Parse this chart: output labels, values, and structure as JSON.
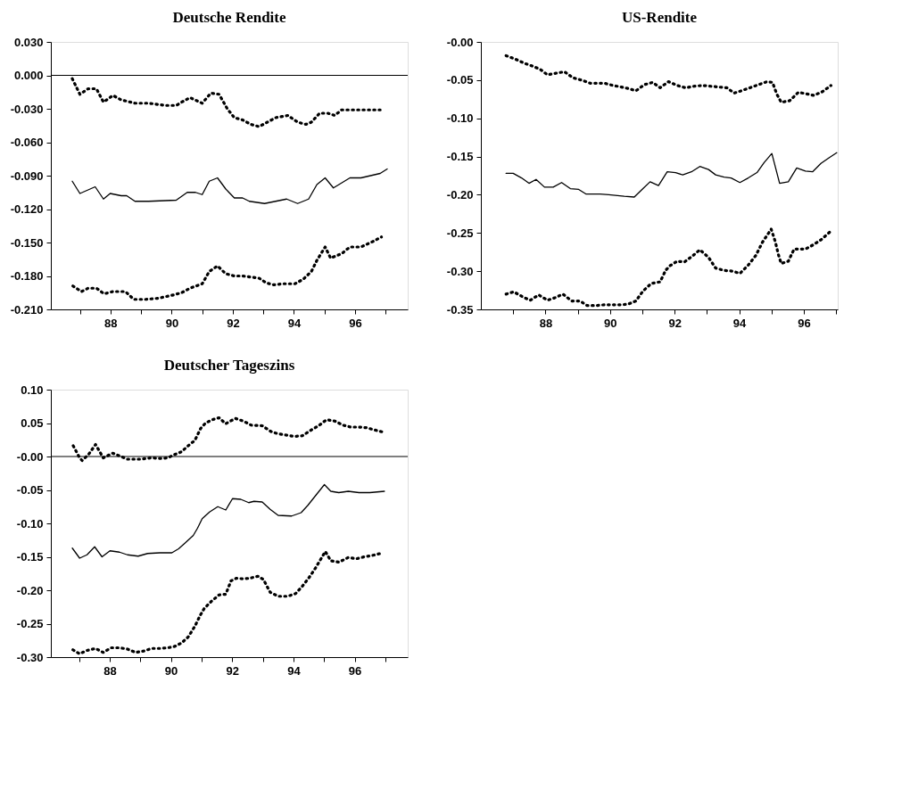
{
  "chart_data": [
    {
      "type": "line",
      "title": "Deutsche Rendite",
      "xlim": [
        86.05,
        97.72
      ],
      "ylim": [
        -0.21,
        0.03
      ],
      "xticks": [
        {
          "value": 87,
          "label": null
        },
        88,
        {
          "value": 89,
          "label": null
        },
        90,
        {
          "value": 91,
          "label": null
        },
        92,
        {
          "value": 93,
          "label": null
        },
        94,
        {
          "value": 95,
          "label": null
        },
        96,
        {
          "value": 97,
          "label": null
        }
      ],
      "yticks": [
        {
          "value": 0.03,
          "label": "0.030"
        },
        {
          "value": 0,
          "label": "0.000"
        },
        {
          "value": -0.03,
          "label": "-0.030"
        },
        {
          "value": -0.06,
          "label": "-0.060"
        },
        {
          "value": -0.09,
          "label": "-0.090"
        },
        {
          "value": -0.12,
          "label": "-0.120"
        },
        {
          "value": -0.15,
          "label": "-0.150"
        },
        {
          "value": -0.18,
          "label": "-0.180"
        },
        {
          "value": -0.21,
          "label": "-0.210"
        }
      ],
      "ref_lines": [
        {
          "axis": "y",
          "value": 0,
          "color": "#000000"
        }
      ],
      "series": [
        {
          "color": "#000000",
          "line_style": "dotted",
          "x": [
            86.75,
            87.0,
            87.27,
            87.54,
            87.77,
            88.08,
            88.35,
            88.8,
            89.25,
            89.79,
            90.15,
            90.33,
            90.6,
            91.0,
            91.28,
            91.55,
            91.82,
            92.05,
            92.32,
            92.59,
            92.86,
            93.13,
            93.4,
            93.8,
            94.12,
            94.39,
            94.57,
            94.84,
            95.11,
            95.33,
            95.56,
            96.1,
            96.82
          ],
          "values": [
            -0.003,
            -0.017,
            -0.012,
            -0.012,
            -0.024,
            -0.018,
            -0.022,
            -0.025,
            -0.025,
            -0.027,
            -0.027,
            -0.024,
            -0.02,
            -0.025,
            -0.016,
            -0.017,
            -0.03,
            -0.038,
            -0.04,
            -0.044,
            -0.046,
            -0.042,
            -0.038,
            -0.036,
            -0.042,
            -0.044,
            -0.042,
            -0.034,
            -0.034,
            -0.036,
            -0.031,
            -0.031,
            -0.031
          ]
        },
        {
          "color": "#000000",
          "line_style": "solid",
          "x": [
            86.75,
            87.0,
            87.5,
            87.77,
            87.99,
            88.35,
            88.53,
            88.8,
            89.25,
            90.15,
            90.51,
            90.78,
            91.0,
            91.23,
            91.5,
            91.77,
            92.05,
            92.32,
            92.54,
            93.04,
            93.4,
            93.76,
            94.12,
            94.48,
            94.75,
            95.02,
            95.29,
            95.83,
            96.19,
            96.82,
            97.05
          ],
          "values": [
            -0.095,
            -0.106,
            -0.1,
            -0.111,
            -0.106,
            -0.108,
            -0.108,
            -0.113,
            -0.113,
            -0.112,
            -0.105,
            -0.105,
            -0.107,
            -0.095,
            -0.092,
            -0.102,
            -0.11,
            -0.11,
            -0.113,
            -0.115,
            -0.113,
            -0.111,
            -0.115,
            -0.111,
            -0.098,
            -0.092,
            -0.101,
            -0.092,
            -0.092,
            -0.088,
            -0.084
          ]
        },
        {
          "color": "#000000",
          "line_style": "dotted",
          "x": [
            86.77,
            87.05,
            87.27,
            87.54,
            87.79,
            88.08,
            88.49,
            88.76,
            89.16,
            89.57,
            90.06,
            90.33,
            90.6,
            91.0,
            91.23,
            91.5,
            91.77,
            92.05,
            92.32,
            92.59,
            92.86,
            93.08,
            93.31,
            93.67,
            94.03,
            94.3,
            94.57,
            94.75,
            95.02,
            95.2,
            95.56,
            95.83,
            96.19,
            96.59,
            96.86
          ],
          "values": [
            -0.189,
            -0.194,
            -0.191,
            -0.191,
            -0.196,
            -0.194,
            -0.194,
            -0.201,
            -0.201,
            -0.2,
            -0.197,
            -0.195,
            -0.191,
            -0.187,
            -0.176,
            -0.171,
            -0.178,
            -0.18,
            -0.18,
            -0.181,
            -0.182,
            -0.186,
            -0.188,
            -0.187,
            -0.187,
            -0.183,
            -0.176,
            -0.166,
            -0.154,
            -0.164,
            -0.16,
            -0.154,
            -0.154,
            -0.149,
            -0.145
          ]
        }
      ]
    },
    {
      "type": "line",
      "title": "US-Rendite",
      "xlim": [
        86.0,
        97.05
      ],
      "ylim": [
        -0.35,
        0.0
      ],
      "xticks": [
        {
          "value": 87,
          "label": null
        },
        88,
        {
          "value": 89,
          "label": null
        },
        90,
        {
          "value": 91,
          "label": null
        },
        92,
        {
          "value": 93,
          "label": null
        },
        94,
        {
          "value": 95,
          "label": null
        },
        96,
        {
          "value": 97,
          "label": null
        }
      ],
      "yticks": [
        {
          "value": 0,
          "label": "-0.00"
        },
        -0.05,
        {
          "value": -0.1,
          "label": "-0.10"
        },
        -0.15,
        {
          "value": -0.2,
          "label": "-0.20"
        },
        -0.25,
        {
          "value": -0.3,
          "label": "-0.30"
        },
        -0.35
      ],
      "series": [
        {
          "color": "#000000",
          "line_style": "dotted",
          "x": [
            86.78,
            87.09,
            87.35,
            87.62,
            87.84,
            88.06,
            88.32,
            88.59,
            88.85,
            89.12,
            89.38,
            89.82,
            90.09,
            90.35,
            90.57,
            90.8,
            91.06,
            91.32,
            91.55,
            91.81,
            92.08,
            92.34,
            92.6,
            92.87,
            93.35,
            93.62,
            93.84,
            94.06,
            94.33,
            94.59,
            94.86,
            95.03,
            95.16,
            95.3,
            95.56,
            95.83,
            96.09,
            96.31,
            96.58,
            96.84
          ],
          "values": [
            -0.018,
            -0.023,
            -0.028,
            -0.032,
            -0.036,
            -0.043,
            -0.041,
            -0.039,
            -0.047,
            -0.05,
            -0.054,
            -0.054,
            -0.057,
            -0.059,
            -0.061,
            -0.064,
            -0.056,
            -0.053,
            -0.06,
            -0.052,
            -0.057,
            -0.06,
            -0.058,
            -0.057,
            -0.059,
            -0.06,
            -0.067,
            -0.064,
            -0.06,
            -0.056,
            -0.052,
            -0.053,
            -0.068,
            -0.079,
            -0.077,
            -0.066,
            -0.068,
            -0.07,
            -0.065,
            -0.057
          ]
        },
        {
          "color": "#000000",
          "line_style": "solid",
          "x": [
            86.78,
            87.0,
            87.26,
            87.49,
            87.71,
            87.97,
            88.24,
            88.5,
            88.77,
            89.03,
            89.25,
            89.69,
            89.96,
            90.44,
            90.75,
            91.02,
            91.24,
            91.5,
            91.77,
            92.03,
            92.25,
            92.52,
            92.78,
            93.05,
            93.27,
            93.53,
            93.75,
            94.02,
            94.28,
            94.55,
            94.77,
            95.01,
            95.25,
            95.52,
            95.78,
            96.05,
            96.27,
            96.53,
            96.8,
            97.02
          ],
          "values": [
            -0.172,
            -0.172,
            -0.178,
            -0.185,
            -0.18,
            -0.19,
            -0.19,
            -0.184,
            -0.192,
            -0.193,
            -0.199,
            -0.199,
            -0.2,
            -0.202,
            -0.203,
            -0.192,
            -0.183,
            -0.188,
            -0.17,
            -0.171,
            -0.174,
            -0.17,
            -0.163,
            -0.167,
            -0.174,
            -0.177,
            -0.178,
            -0.184,
            -0.178,
            -0.171,
            -0.158,
            -0.146,
            -0.185,
            -0.183,
            -0.165,
            -0.169,
            -0.17,
            -0.159,
            -0.151,
            -0.145
          ]
        },
        {
          "color": "#000000",
          "line_style": "dotted",
          "x": [
            86.78,
            87.02,
            87.31,
            87.53,
            87.79,
            88.06,
            88.28,
            88.54,
            88.81,
            89.07,
            89.29,
            89.56,
            89.82,
            90.09,
            90.35,
            90.57,
            90.8,
            91.02,
            91.28,
            91.55,
            91.72,
            91.85,
            92.08,
            92.3,
            92.56,
            92.78,
            93.05,
            93.27,
            93.53,
            93.8,
            94.02,
            94.28,
            94.52,
            94.72,
            94.99,
            95.12,
            95.21,
            95.3,
            95.52,
            95.7,
            96.05,
            96.27,
            96.53,
            96.8
          ],
          "values": [
            -0.33,
            -0.327,
            -0.334,
            -0.338,
            -0.331,
            -0.338,
            -0.335,
            -0.33,
            -0.339,
            -0.339,
            -0.345,
            -0.345,
            -0.344,
            -0.344,
            -0.344,
            -0.343,
            -0.339,
            -0.326,
            -0.316,
            -0.314,
            -0.299,
            -0.293,
            -0.287,
            -0.288,
            -0.28,
            -0.272,
            -0.282,
            -0.296,
            -0.299,
            -0.3,
            -0.303,
            -0.292,
            -0.279,
            -0.262,
            -0.245,
            -0.262,
            -0.278,
            -0.29,
            -0.287,
            -0.271,
            -0.271,
            -0.266,
            -0.259,
            -0.249
          ]
        }
      ]
    },
    {
      "type": "line",
      "title": "Deutscher Tageszins",
      "xlim": [
        86.08,
        97.73
      ],
      "ylim": [
        -0.3,
        0.1
      ],
      "xticks": [
        {
          "value": 87,
          "label": null
        },
        88,
        {
          "value": 89,
          "label": null
        },
        90,
        {
          "value": 91,
          "label": null
        },
        92,
        {
          "value": 93,
          "label": null
        },
        94,
        {
          "value": 95,
          "label": null
        },
        96,
        {
          "value": 97,
          "label": null
        }
      ],
      "yticks": [
        {
          "value": 0.1,
          "label": "0.10"
        },
        0.05,
        {
          "value": 0,
          "label": "-0.00"
        },
        -0.05,
        {
          "value": -0.1,
          "label": "-0.10"
        },
        -0.15,
        {
          "value": -0.2,
          "label": "-0.20"
        },
        -0.25,
        {
          "value": -0.3,
          "label": "-0.30"
        }
      ],
      "ref_lines": [
        {
          "axis": "y",
          "value": 0,
          "color": "#000000"
        }
      ],
      "series": [
        {
          "color": "#000000",
          "line_style": "dotted",
          "x": [
            86.81,
            87.02,
            87.1,
            87.31,
            87.54,
            87.79,
            88.1,
            88.32,
            88.58,
            89.02,
            89.37,
            89.64,
            89.9,
            90.12,
            90.34,
            90.56,
            90.78,
            90.97,
            91.13,
            91.35,
            91.57,
            91.79,
            92.1,
            92.36,
            92.62,
            92.98,
            93.28,
            93.5,
            93.77,
            94.03,
            94.29,
            94.56,
            94.82,
            95.08,
            95.35,
            95.61,
            95.87,
            96.14,
            96.4,
            96.62,
            96.89
          ],
          "values": [
            0.016,
            -0.002,
            -0.006,
            0.003,
            0.018,
            -0.002,
            0.005,
            0.001,
            -0.004,
            -0.004,
            -0.002,
            -0.003,
            -0.002,
            0.003,
            0.007,
            0.016,
            0.024,
            0.042,
            0.05,
            0.055,
            0.058,
            0.049,
            0.057,
            0.053,
            0.047,
            0.046,
            0.037,
            0.034,
            0.032,
            0.03,
            0.031,
            0.039,
            0.046,
            0.055,
            0.053,
            0.047,
            0.044,
            0.044,
            0.043,
            0.04,
            0.037
          ]
        },
        {
          "color": "#000000",
          "line_style": "solid",
          "x": [
            86.78,
            87.02,
            87.26,
            87.51,
            87.75,
            88.01,
            88.32,
            88.58,
            88.93,
            89.24,
            89.64,
            90.03,
            90.25,
            90.47,
            90.73,
            90.87,
            91.02,
            91.26,
            91.53,
            91.79,
            92.01,
            92.28,
            92.54,
            92.71,
            92.98,
            93.24,
            93.5,
            93.94,
            94.25,
            94.47,
            94.73,
            95.01,
            95.22,
            95.48,
            95.79,
            96.14,
            96.49,
            96.97
          ],
          "values": [
            -0.137,
            -0.152,
            -0.147,
            -0.135,
            -0.15,
            -0.141,
            -0.143,
            -0.147,
            -0.149,
            -0.145,
            -0.144,
            -0.144,
            -0.138,
            -0.129,
            -0.118,
            -0.107,
            -0.093,
            -0.083,
            -0.075,
            -0.08,
            -0.063,
            -0.064,
            -0.069,
            -0.067,
            -0.068,
            -0.079,
            -0.088,
            -0.089,
            -0.084,
            -0.073,
            -0.058,
            -0.042,
            -0.052,
            -0.054,
            -0.052,
            -0.054,
            -0.054,
            -0.052
          ]
        },
        {
          "color": "#000000",
          "line_style": "dotted",
          "x": [
            86.8,
            87.02,
            87.26,
            87.54,
            87.79,
            88.05,
            88.32,
            88.58,
            88.85,
            89.11,
            89.37,
            89.64,
            89.9,
            90.12,
            90.34,
            90.56,
            90.78,
            90.95,
            91.09,
            91.31,
            91.57,
            91.79,
            91.96,
            92.14,
            92.36,
            92.58,
            92.84,
            93.02,
            93.24,
            93.5,
            93.81,
            94.07,
            94.29,
            94.51,
            94.73,
            94.95,
            95.04,
            95.22,
            95.48,
            95.79,
            96.05,
            96.31,
            96.57,
            96.84
          ],
          "values": [
            -0.289,
            -0.295,
            -0.29,
            -0.287,
            -0.293,
            -0.286,
            -0.286,
            -0.288,
            -0.293,
            -0.291,
            -0.287,
            -0.287,
            -0.286,
            -0.284,
            -0.279,
            -0.27,
            -0.254,
            -0.238,
            -0.227,
            -0.217,
            -0.207,
            -0.206,
            -0.186,
            -0.182,
            -0.183,
            -0.182,
            -0.179,
            -0.184,
            -0.203,
            -0.209,
            -0.209,
            -0.205,
            -0.194,
            -0.181,
            -0.166,
            -0.149,
            -0.142,
            -0.156,
            -0.158,
            -0.151,
            -0.153,
            -0.15,
            -0.148,
            -0.145
          ]
        }
      ]
    }
  ]
}
